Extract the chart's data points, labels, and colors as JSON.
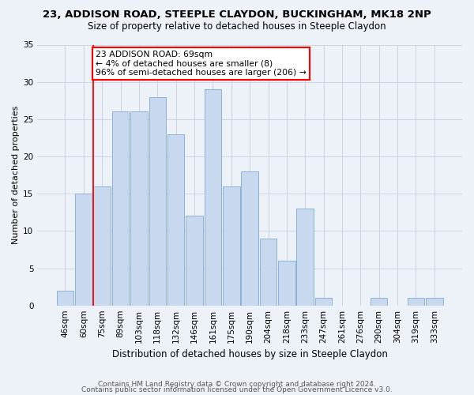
{
  "title_line1": "23, ADDISON ROAD, STEEPLE CLAYDON, BUCKINGHAM, MK18 2NP",
  "title_line2": "Size of property relative to detached houses in Steeple Claydon",
  "xlabel": "Distribution of detached houses by size in Steeple Claydon",
  "ylabel": "Number of detached properties",
  "bin_labels": [
    "46sqm",
    "60sqm",
    "75sqm",
    "89sqm",
    "103sqm",
    "118sqm",
    "132sqm",
    "146sqm",
    "161sqm",
    "175sqm",
    "190sqm",
    "204sqm",
    "218sqm",
    "233sqm",
    "247sqm",
    "261sqm",
    "276sqm",
    "290sqm",
    "304sqm",
    "319sqm",
    "333sqm"
  ],
  "bar_values": [
    2,
    15,
    16,
    26,
    26,
    28,
    23,
    12,
    29,
    16,
    18,
    9,
    6,
    13,
    1,
    0,
    0,
    1,
    0,
    1,
    1
  ],
  "bar_color": "#c8d9ef",
  "bar_edge_color": "#8ab3d8",
  "red_line_x": 1.5,
  "annotation_text": "23 ADDISON ROAD: 69sqm\n← 4% of detached houses are smaller (8)\n96% of semi-detached houses are larger (206) →",
  "annotation_box_color": "white",
  "annotation_box_edge": "red",
  "ylim": [
    0,
    35
  ],
  "yticks": [
    0,
    5,
    10,
    15,
    20,
    25,
    30,
    35
  ],
  "footer_line1": "Contains HM Land Registry data © Crown copyright and database right 2024.",
  "footer_line2": "Contains public sector information licensed under the Open Government Licence v3.0.",
  "bg_color": "#edf1f8",
  "grid_color": "#c8cfe0",
  "title1_fontsize": 9.5,
  "title2_fontsize": 8.5,
  "xlabel_fontsize": 8.5,
  "ylabel_fontsize": 8.0,
  "tick_fontsize": 7.5,
  "annot_fontsize": 7.8,
  "footer_fontsize": 6.5
}
